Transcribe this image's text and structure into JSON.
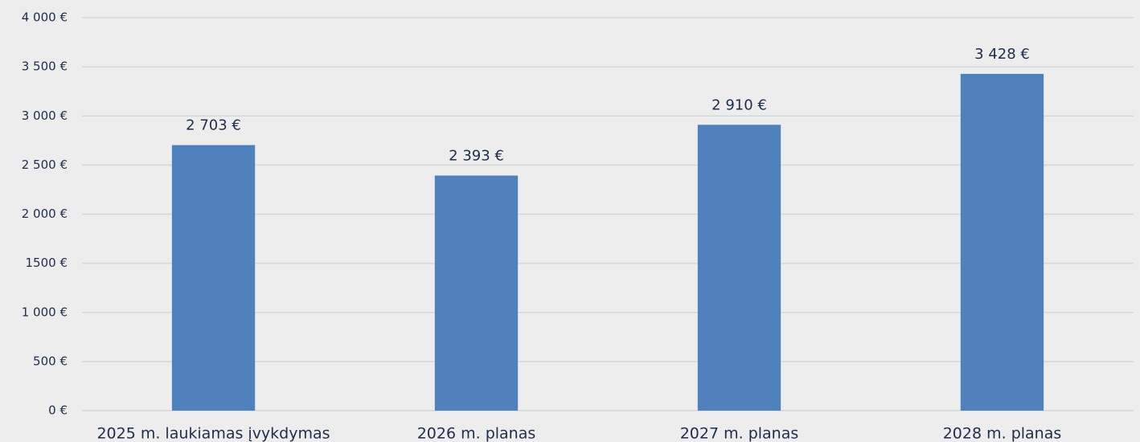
{
  "chart_data": {
    "type": "bar",
    "categories": [
      "2025 m. laukiamas įvykdymas",
      "2026 m. planas",
      "2027 m. planas",
      "2028 m. planas"
    ],
    "values": [
      2703,
      2393,
      2910,
      3428
    ],
    "value_labels": [
      "2 703 €",
      "2 393 €",
      "2 910 €",
      "3 428 €"
    ],
    "color": "#4f81bd",
    "ylim": [
      0,
      4000
    ],
    "yticks": [
      {
        "value": 0,
        "label": "0 €"
      },
      {
        "value": 500,
        "label": "500 €"
      },
      {
        "value": 1000,
        "label": "1 000 €"
      },
      {
        "value": 1500,
        "label": "1500 €"
      },
      {
        "value": 2000,
        "label": "2 000 €"
      },
      {
        "value": 2500,
        "label": "2 500 €"
      },
      {
        "value": 3000,
        "label": "3 000 €"
      },
      {
        "value": 3500,
        "label": "3 500 €"
      },
      {
        "value": 4000,
        "label": "4 000 €"
      }
    ],
    "grid": true
  }
}
